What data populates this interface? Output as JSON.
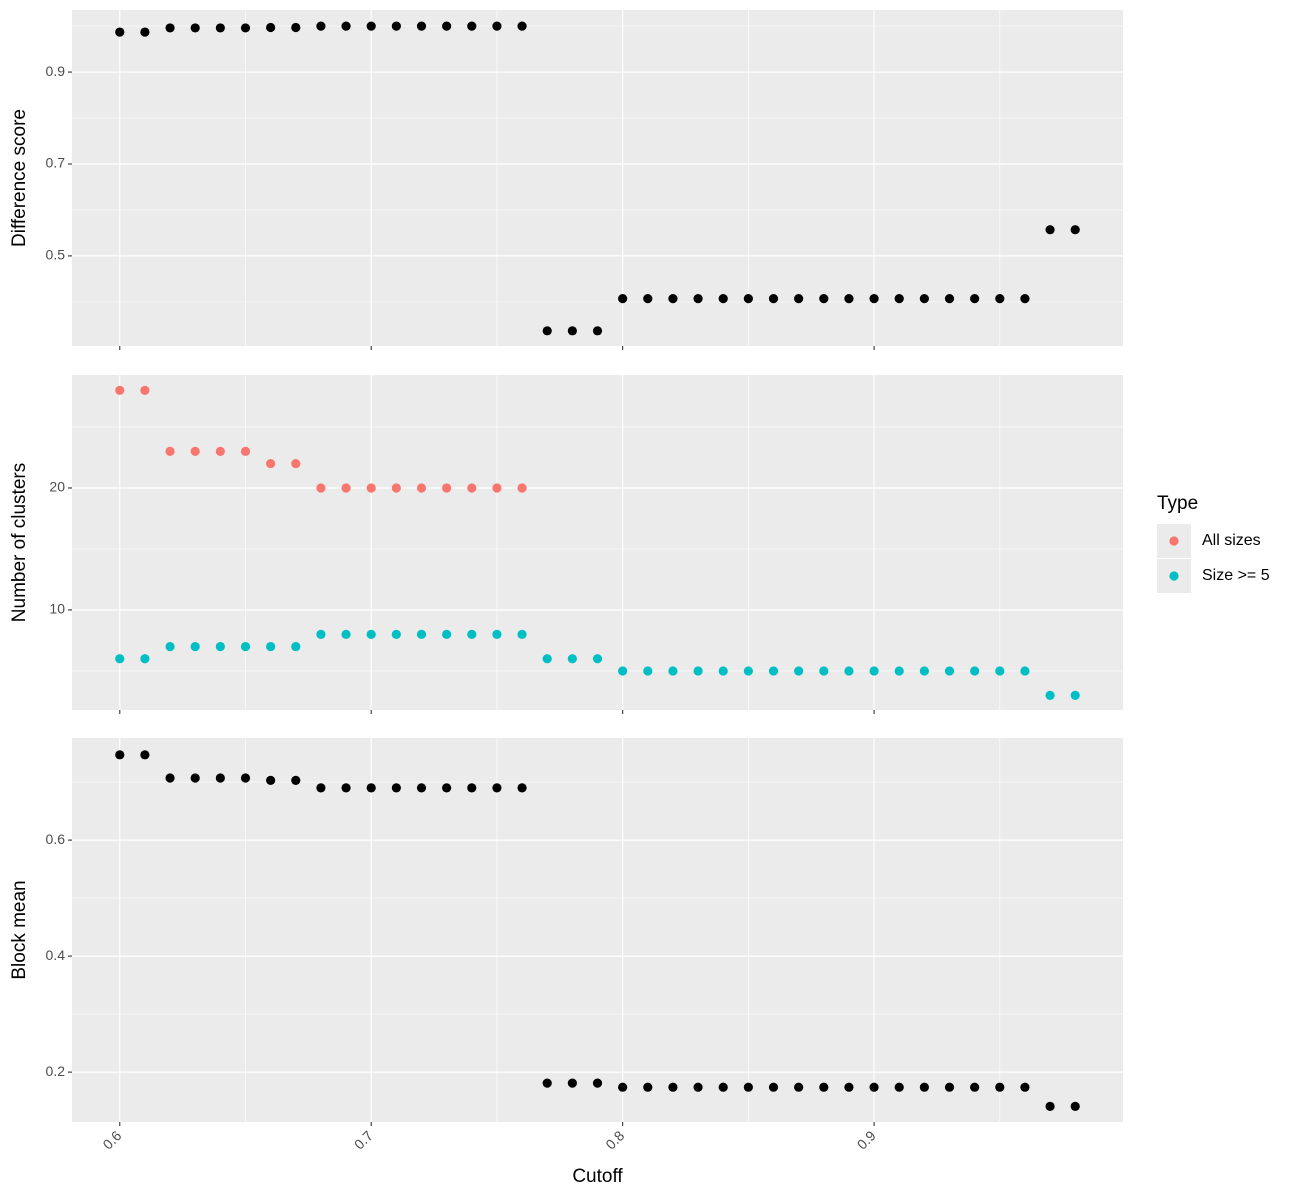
{
  "chart_data": [
    {
      "type": "scatter",
      "ylabel": "Difference score",
      "x": [
        0.6,
        0.61,
        0.62,
        0.63,
        0.64,
        0.65,
        0.66,
        0.67,
        0.68,
        0.69,
        0.7,
        0.71,
        0.72,
        0.73,
        0.74,
        0.75,
        0.76,
        0.77,
        0.78,
        0.79,
        0.8,
        0.81,
        0.82,
        0.83,
        0.84,
        0.85,
        0.86,
        0.87,
        0.88,
        0.89,
        0.9,
        0.91,
        0.92,
        0.93,
        0.94,
        0.95,
        0.96,
        0.97,
        0.98
      ],
      "values": [
        0.987,
        0.987,
        0.996,
        0.996,
        0.996,
        0.996,
        0.997,
        0.997,
        1,
        1,
        1,
        1,
        1,
        1,
        1,
        1,
        1,
        0.337,
        0.337,
        0.337,
        0.407,
        0.407,
        0.407,
        0.407,
        0.407,
        0.407,
        0.407,
        0.407,
        0.407,
        0.407,
        0.407,
        0.407,
        0.407,
        0.407,
        0.407,
        0.407,
        0.407,
        0.557,
        0.557
      ],
      "color": "#000000",
      "xlim": [
        0.581,
        0.999
      ],
      "xticks": [
        0.6,
        0.7,
        0.8,
        0.9
      ],
      "ylim": [
        0.304,
        1.035
      ],
      "yticks": [
        0.5,
        0.7,
        0.9
      ],
      "grid": true
    },
    {
      "type": "scatter",
      "ylabel": "Number of clusters",
      "x": [
        0.6,
        0.61,
        0.62,
        0.63,
        0.64,
        0.65,
        0.66,
        0.67,
        0.68,
        0.69,
        0.7,
        0.71,
        0.72,
        0.73,
        0.74,
        0.75,
        0.76,
        0.77,
        0.78,
        0.79,
        0.8,
        0.81,
        0.82,
        0.83,
        0.84,
        0.85,
        0.86,
        0.87,
        0.88,
        0.89,
        0.9,
        0.91,
        0.92,
        0.93,
        0.94,
        0.95,
        0.96,
        0.97,
        0.98
      ],
      "series": [
        {
          "name": "All sizes",
          "color": "#F8766D",
          "values": [
            28,
            28,
            23,
            23,
            23,
            23,
            22,
            22,
            20,
            20,
            20,
            20,
            20,
            20,
            20,
            20,
            20,
            null,
            null,
            null,
            null,
            null,
            null,
            null,
            null,
            null,
            null,
            null,
            null,
            null,
            null,
            null,
            null,
            null,
            null,
            null,
            null,
            null,
            null
          ]
        },
        {
          "name": "Size >= 5",
          "color": "#00BFC4",
          "values": [
            6,
            6,
            7,
            7,
            7,
            7,
            7,
            7,
            8,
            8,
            8,
            8,
            8,
            8,
            8,
            8,
            8,
            6,
            6,
            6,
            5,
            5,
            5,
            5,
            5,
            5,
            5,
            5,
            5,
            5,
            5,
            5,
            5,
            5,
            5,
            5,
            5,
            3,
            3
          ]
        }
      ],
      "legend_title": "Type",
      "legend": "right",
      "xlim": [
        0.581,
        0.999
      ],
      "xticks": [
        0.6,
        0.7,
        0.8,
        0.9
      ],
      "ylim": [
        1.8,
        29.26
      ],
      "yticks": [
        10,
        20
      ],
      "grid": true
    },
    {
      "type": "scatter",
      "ylabel": "Block mean",
      "xlabel": "Cutoff",
      "x": [
        0.6,
        0.61,
        0.62,
        0.63,
        0.64,
        0.65,
        0.66,
        0.67,
        0.68,
        0.69,
        0.7,
        0.71,
        0.72,
        0.73,
        0.74,
        0.75,
        0.76,
        0.77,
        0.78,
        0.79,
        0.8,
        0.81,
        0.82,
        0.83,
        0.84,
        0.85,
        0.86,
        0.87,
        0.88,
        0.89,
        0.9,
        0.91,
        0.92,
        0.93,
        0.94,
        0.95,
        0.96,
        0.97,
        0.98
      ],
      "values": [
        0.747,
        0.747,
        0.707,
        0.707,
        0.707,
        0.707,
        0.703,
        0.703,
        0.69,
        0.69,
        0.69,
        0.69,
        0.69,
        0.69,
        0.69,
        0.69,
        0.69,
        0.181,
        0.181,
        0.181,
        0.174,
        0.174,
        0.174,
        0.174,
        0.174,
        0.174,
        0.174,
        0.174,
        0.174,
        0.174,
        0.174,
        0.174,
        0.174,
        0.174,
        0.174,
        0.174,
        0.174,
        0.141,
        0.141
      ],
      "color": "#000000",
      "xlim": [
        0.581,
        0.999
      ],
      "xticks": [
        0.6,
        0.7,
        0.8,
        0.9
      ],
      "ylim": [
        0.114,
        0.776
      ],
      "yticks": [
        0.2,
        0.4,
        0.6
      ],
      "grid": true
    }
  ]
}
